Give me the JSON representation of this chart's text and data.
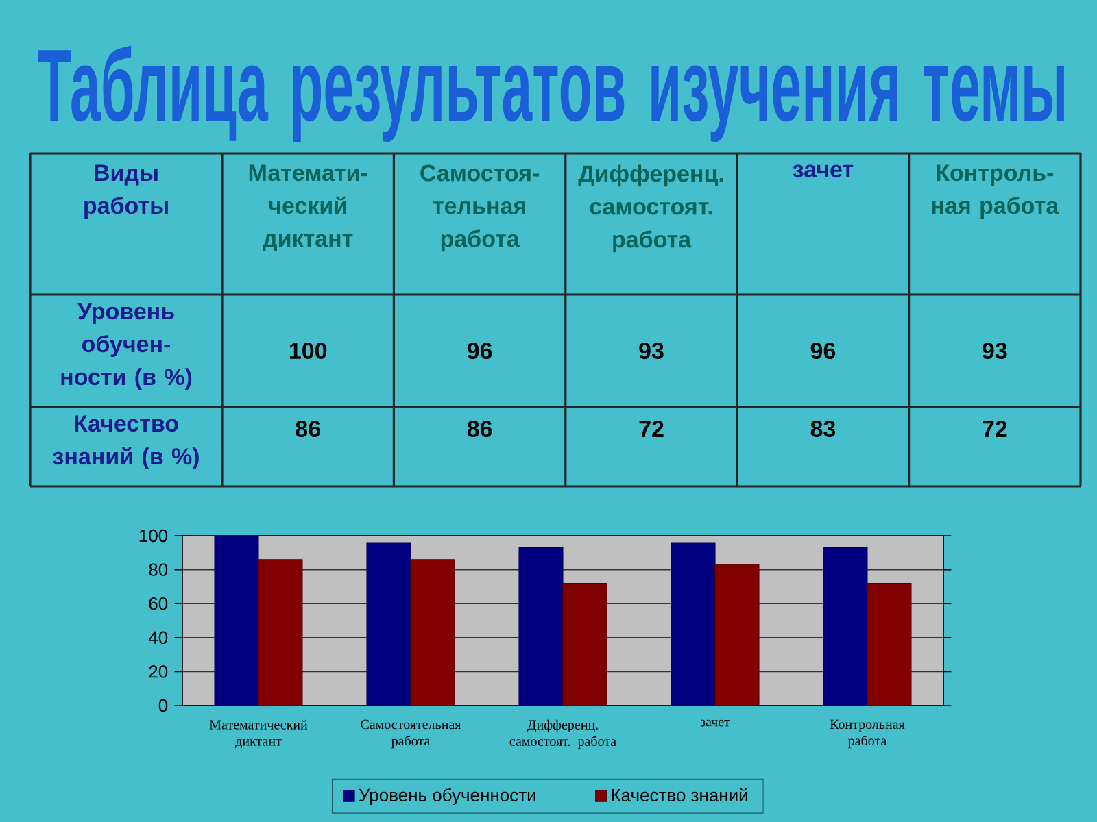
{
  "chart_data": {
    "type": "bar",
    "title": "Таблица результатов изучения темы",
    "categories": [
      "Математический диктант",
      "Самостоятельная работа",
      "Дифференц. самостоят. работа",
      "зачет",
      "Контрольная работа"
    ],
    "series": [
      {
        "name": "Уровень обученности",
        "color": "#000080",
        "values": [
          100,
          96,
          93,
          96,
          93
        ]
      },
      {
        "name": "Качество знаний",
        "color": "#800000",
        "values": [
          86,
          86,
          72,
          83,
          72
        ]
      }
    ],
    "ylim": [
      0,
      100
    ],
    "yticks": [
      0,
      20,
      40,
      60,
      80,
      100
    ],
    "grid": "y",
    "legend": "bottom",
    "annotations": [
      "Виды работы",
      "Математи-ческий диктант",
      "Самостоя-тельная работа",
      "Дифференц. самостоят. работа",
      "зачет",
      "Контроль-ная работа",
      "Уровень обучен-ности (в %)",
      "100",
      "96",
      "93",
      "96",
      "93",
      "Качество знаний (в %)",
      "86",
      "86",
      "72",
      "83",
      "72"
    ]
  }
}
